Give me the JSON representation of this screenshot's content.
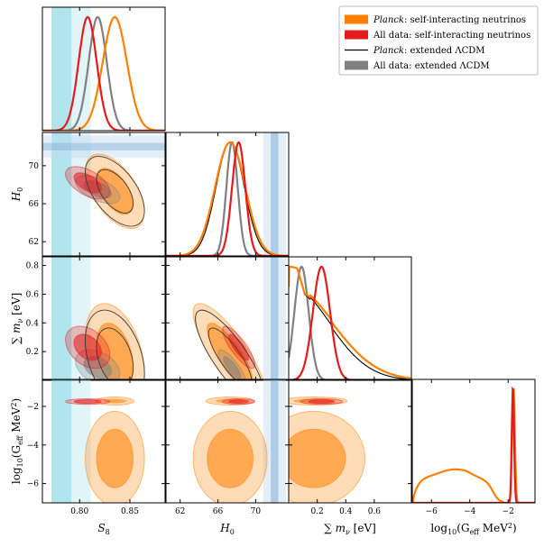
{
  "chart_data": {
    "type": "corner",
    "parameters": [
      {
        "key": "S8",
        "label": "S",
        "sub": "8",
        "range": [
          0.763,
          0.885
        ],
        "ticks": [
          0.8,
          0.85
        ],
        "tick_labels": [
          "0.80",
          "0.85"
        ]
      },
      {
        "key": "H0",
        "label": "H",
        "sub": "0",
        "range": [
          60.5,
          73.5
        ],
        "ticks": [
          62,
          66,
          70
        ],
        "tick_labels": [
          "62",
          "66",
          "70"
        ]
      },
      {
        "key": "mnu",
        "label": "∑ m",
        "sub": "ν",
        "unit": "[eV]",
        "range": [
          0.0,
          0.86
        ],
        "ticks": [
          0.2,
          0.4,
          0.6
        ],
        "tick_labels": [
          "0.2",
          "0.4",
          "0.6"
        ],
        "y_ticks": [
          0.2,
          0.4,
          0.6,
          0.8
        ],
        "y_tick_labels": [
          "0.2",
          "0.4",
          "0.6",
          "0.8"
        ]
      },
      {
        "key": "logG",
        "label": "log",
        "sub": "10",
        "rest": "(G",
        "rest_sub": "eff",
        "unit": "MeV",
        "unit_sup": "2",
        "range": [
          -7.0,
          -0.6
        ],
        "ticks": [
          -6,
          -4,
          -2
        ],
        "tick_labels": [
          "−6",
          "−4",
          "−2"
        ]
      }
    ],
    "axis_labels": {
      "x_S8": "S8",
      "x_H0": "H0",
      "x_mnu": "∑ mν [eV]",
      "x_logG": "log10(Geff MeV²)",
      "y_H0": "H0",
      "y_mnu": "∑ mν [eV]",
      "y_logG": "log10(Geff MeV²)"
    },
    "series": [
      {
        "name": "Planck: self-interacting neutrinos",
        "name_italic": "Planck",
        "name_rest": ": self-interacting neutrinos",
        "color": "#ff8000",
        "style": "filled",
        "S8": {
          "mean": 0.835,
          "sd": 0.012
        },
        "H0": {
          "mean": 67.3,
          "sd": 1.6
        },
        "mnu": {
          "upper95": 0.46
        },
        "logG_modes": [
          {
            "center": -1.75,
            "width": 0.12
          },
          {
            "center": -4.5,
            "width": 3.3
          }
        ]
      },
      {
        "name": "All data: self-interacting neutrinos",
        "color": "#e41a1c",
        "style": "filled",
        "S8": {
          "mean": 0.808,
          "sd": 0.009
        },
        "H0": {
          "mean": 68.2,
          "sd": 0.7
        },
        "mnu": {
          "mean": 0.23,
          "sd": 0.06
        },
        "logG": {
          "mean": -1.75,
          "sd": 0.06
        }
      },
      {
        "name": "Planck: extended ΛCDM",
        "name_italic": "Planck",
        "name_rest": ": extended ΛCDM",
        "color": "#000000",
        "style": "line",
        "S8": {
          "mean": 0.835,
          "sd": 0.012
        },
        "H0": {
          "mean": 67.3,
          "sd": 1.5
        },
        "mnu": {
          "upper95": 0.42
        }
      },
      {
        "name": "All data: extended ΛCDM",
        "color": "#808080",
        "style": "filled",
        "S8": {
          "mean": 0.818,
          "sd": 0.009
        },
        "H0": {
          "mean": 67.5,
          "sd": 0.6
        },
        "mnu": {
          "mean": 0.09,
          "sd": 0.05
        }
      }
    ],
    "external_bands": [
      {
        "param": "S8",
        "low": 0.772,
        "high": 0.792,
        "color": "#6fd0e0"
      },
      {
        "param": "S8",
        "low": 0.792,
        "high": 0.811,
        "color": "#bde9f1"
      },
      {
        "param": "H0",
        "low": 71.6,
        "high": 72.4,
        "color": "#4f8fc9"
      },
      {
        "param": "H0",
        "low": 70.8,
        "high": 73.2,
        "color": "#c4d9ee"
      }
    ],
    "legend_position": "top-right"
  }
}
